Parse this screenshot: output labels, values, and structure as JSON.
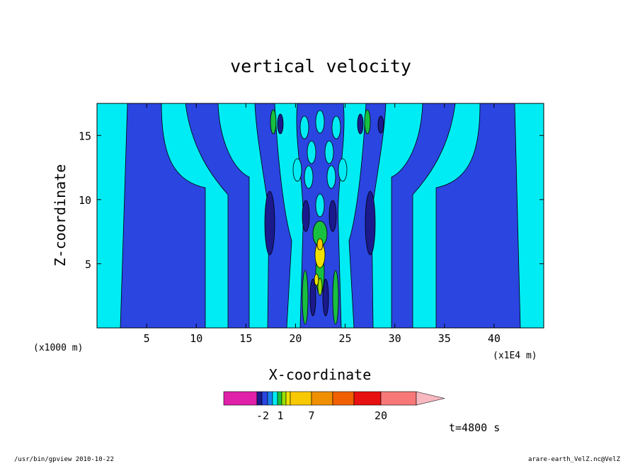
{
  "chart_data": {
    "type": "heatmap",
    "title": "vertical velocity",
    "xlabel": "X-coordinate",
    "ylabel": "Z-coordinate",
    "x_unit_left": "(x1000 m)",
    "x_unit_right": "(x1E4 m)",
    "xlim": [
      0,
      45
    ],
    "ylim": [
      0,
      17.5
    ],
    "x_ticks": [
      "5",
      "10",
      "15",
      "20",
      "25",
      "30",
      "35",
      "40"
    ],
    "x_tick_values": [
      5,
      10,
      15,
      20,
      25,
      30,
      35,
      40
    ],
    "y_ticks": [
      "5",
      "10",
      "15"
    ],
    "y_tick_values": [
      5,
      10,
      15
    ],
    "colorbar": {
      "colors": [
        "#e020a8",
        "#1a1a8c",
        "#2a45e0",
        "#1880f0",
        "#00ecf4",
        "#18c040",
        "#98e000",
        "#f0e000",
        "#f8c800",
        "#f09000",
        "#f06000",
        "#e81010",
        "#f87878",
        "#f8b8c0"
      ],
      "labels": [
        "-2",
        "1",
        "7",
        "20"
      ],
      "label_values": [
        -2,
        1,
        7,
        20
      ]
    },
    "time_label": "t=4800 s"
  },
  "footer": {
    "left": "/usr/bin/gpview   2010-10-22",
    "right": "arare-earth_VelZ.nc@VelZ"
  }
}
